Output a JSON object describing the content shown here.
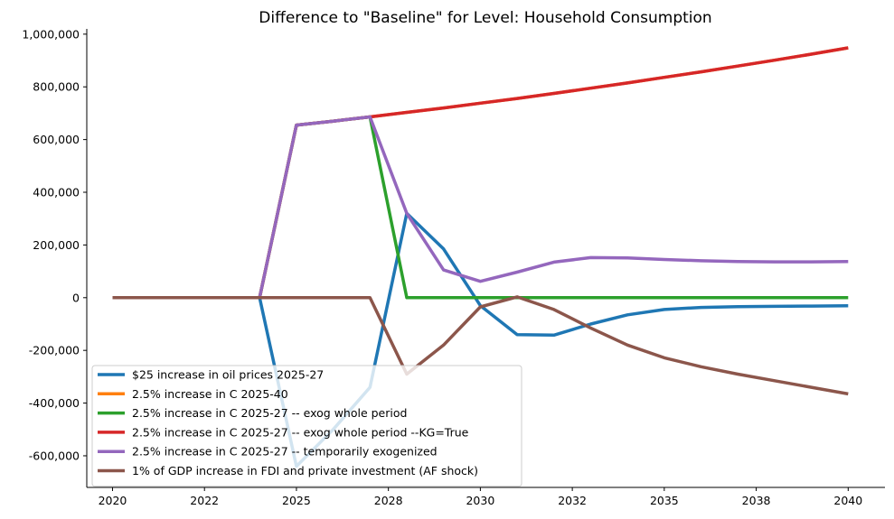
{
  "chart_data": {
    "type": "line",
    "title": "Difference to \"Baseline\" for Level: Household Consumption",
    "xlabel": "",
    "ylabel": "",
    "xlim": [
      2019.3,
      2041.0
    ],
    "ylim": [
      -720000,
      1020000
    ],
    "x_ticks": [
      2020,
      2022.5,
      2025,
      2027.5,
      2030,
      2032.5,
      2035,
      2037.5,
      2040
    ],
    "x_tick_labels": [
      "2020",
      "2022",
      "2025",
      "2028",
      "2030",
      "2032",
      "2035",
      "2038",
      "2040"
    ],
    "y_ticks": [
      -600000,
      -400000,
      -200000,
      0,
      200000,
      400000,
      600000,
      800000,
      1000000
    ],
    "y_tick_labels": [
      "-600,000",
      "-400,000",
      "-200,000",
      "0",
      "200,000",
      "400,000",
      "600,000",
      "800,000",
      "1,000,000"
    ],
    "grid": false,
    "legend_position": "lower-left",
    "x": [
      2020,
      2021,
      2022,
      2023,
      2024,
      2025,
      2026,
      2027,
      2028,
      2029,
      2030,
      2031,
      2032,
      2033,
      2034,
      2035,
      2036,
      2037,
      2038,
      2039,
      2040
    ],
    "series": [
      {
        "name": "$25 increase in oil prices 2025-27",
        "color": "#1f77b4",
        "values": [
          0,
          0,
          0,
          0,
          0,
          -640000,
          -500000,
          -340000,
          320000,
          185000,
          -30000,
          -140000,
          -142000,
          -100000,
          -65000,
          -45000,
          -37000,
          -34000,
          -33000,
          -32000,
          -31000
        ]
      },
      {
        "name": "2.5% increase in C 2025-40",
        "color": "#ff7f0e",
        "values": [
          0,
          0,
          0,
          0,
          0,
          655000,
          670000,
          686000,
          703000,
          720000,
          738000,
          756000,
          775000,
          795000,
          815000,
          836000,
          857000,
          879000,
          901000,
          924000,
          948000
        ]
      },
      {
        "name": "2.5% increase in C 2025-27 -- exog whole period",
        "color": "#2ca02c",
        "values": [
          0,
          0,
          0,
          0,
          0,
          655000,
          670000,
          686000,
          0,
          0,
          0,
          0,
          0,
          0,
          0,
          0,
          0,
          0,
          0,
          0,
          0
        ]
      },
      {
        "name": "2.5% increase in C 2025-27 -- exog whole period --KG=True",
        "color": "#d62728",
        "values": [
          0,
          0,
          0,
          0,
          0,
          655000,
          670000,
          686000,
          703000,
          720000,
          738000,
          756000,
          775000,
          795000,
          815000,
          836000,
          857000,
          879000,
          901000,
          924000,
          948000
        ]
      },
      {
        "name": "2.5% increase in C 2025-27 -- temporarily exogenized",
        "color": "#9467bd",
        "values": [
          0,
          0,
          0,
          0,
          0,
          655000,
          670000,
          686000,
          320000,
          105000,
          62000,
          97000,
          135000,
          152000,
          151000,
          145000,
          140000,
          137000,
          136000,
          136000,
          137000
        ]
      },
      {
        "name": "1% of GDP increase in FDI and private investment (AF shock)",
        "color": "#8c564b",
        "values": [
          0,
          0,
          0,
          0,
          0,
          0,
          0,
          0,
          -290000,
          -180000,
          -35000,
          3000,
          -45000,
          -115000,
          -180000,
          -228000,
          -262000,
          -290000,
          -315000,
          -340000,
          -365000
        ]
      }
    ]
  }
}
